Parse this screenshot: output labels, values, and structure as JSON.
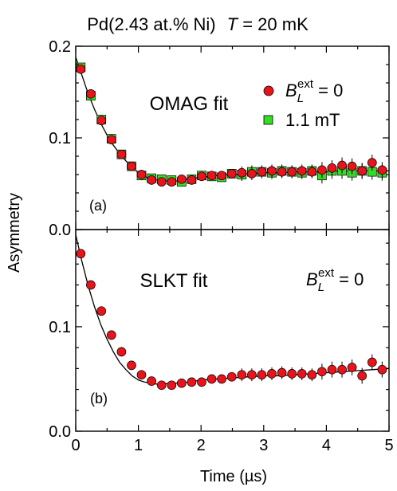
{
  "figure": {
    "title_parts": [
      "Pd(2.43 at.% Ni)",
      "T",
      " = 20 mK"
    ],
    "xlabel": "Time (µs)",
    "ylabel": "Asymmetry",
    "field_symbol": "B",
    "field_sub": "L",
    "field_sup": "ext",
    "field_zero": " = 0",
    "series1_color": "#e8141b",
    "series2_color": "#33dd22"
  },
  "chart_data": [
    {
      "type": "scatter",
      "panel_label": "(a)",
      "title": "OMAG fit",
      "xlim": [
        0,
        5
      ],
      "ylim": [
        0,
        0.2
      ],
      "x_ticks": [
        0,
        1,
        2,
        3,
        4,
        5
      ],
      "y_ticks": [
        0.0,
        0.1,
        0.2
      ],
      "y_tick_labels": [
        "0.0",
        "0.1",
        "0.2"
      ],
      "legend_position": "top-right",
      "series": [
        {
          "name": "B_L^ext = 0",
          "marker": "circle",
          "color": "#e8141b",
          "x": [
            0.08,
            0.24,
            0.41,
            0.57,
            0.73,
            0.89,
            1.05,
            1.21,
            1.37,
            1.53,
            1.69,
            1.85,
            2.01,
            2.17,
            2.33,
            2.49,
            2.65,
            2.81,
            2.97,
            3.13,
            3.29,
            3.45,
            3.61,
            3.77,
            3.93,
            4.09,
            4.25,
            4.41,
            4.57,
            4.73,
            4.89
          ],
          "y": [
            0.175,
            0.148,
            0.119,
            0.098,
            0.082,
            0.069,
            0.06,
            0.054,
            0.052,
            0.052,
            0.055,
            0.054,
            0.058,
            0.059,
            0.059,
            0.061,
            0.062,
            0.061,
            0.063,
            0.064,
            0.063,
            0.063,
            0.064,
            0.063,
            0.065,
            0.067,
            0.07,
            0.069,
            0.064,
            0.073,
            0.065
          ]
        },
        {
          "name": "1.1 mT",
          "marker": "square",
          "color": "#33dd22",
          "x": [
            0.08,
            0.24,
            0.41,
            0.57,
            0.73,
            0.89,
            1.05,
            1.21,
            1.37,
            1.53,
            1.69,
            1.85,
            2.01,
            2.17,
            2.33,
            2.49,
            2.65,
            2.81,
            2.97,
            3.13,
            3.29,
            3.45,
            3.61,
            3.77,
            3.93,
            4.09,
            4.25,
            4.41,
            4.57,
            4.73,
            4.89
          ],
          "y": [
            0.177,
            0.146,
            0.12,
            0.099,
            0.082,
            0.069,
            0.059,
            0.056,
            0.055,
            0.054,
            0.052,
            0.055,
            0.059,
            0.058,
            0.057,
            0.061,
            0.06,
            0.063,
            0.063,
            0.062,
            0.064,
            0.063,
            0.062,
            0.064,
            0.059,
            0.064,
            0.064,
            0.062,
            0.064,
            0.063,
            0.062
          ]
        }
      ],
      "fit": {
        "x": [
          0,
          0.1,
          0.2,
          0.3,
          0.4,
          0.5,
          0.6,
          0.7,
          0.8,
          0.9,
          1.0,
          1.1,
          1.2,
          1.3,
          1.4,
          1.5,
          1.6,
          1.8,
          2.0,
          2.25,
          2.5,
          2.75,
          3.0,
          3.25,
          3.5,
          3.75,
          4.0,
          4.25,
          4.5,
          4.75,
          5.0
        ],
        "y": [
          0.188,
          0.168,
          0.148,
          0.131,
          0.116,
          0.103,
          0.092,
          0.083,
          0.075,
          0.068,
          0.062,
          0.058,
          0.055,
          0.054,
          0.053,
          0.053,
          0.053,
          0.055,
          0.057,
          0.059,
          0.06,
          0.061,
          0.062,
          0.062,
          0.063,
          0.063,
          0.063,
          0.064,
          0.064,
          0.064,
          0.064
        ]
      }
    },
    {
      "type": "scatter",
      "panel_label": "(b)",
      "title": "SLKT fit",
      "xlim": [
        0,
        5
      ],
      "ylim": [
        0,
        0.2
      ],
      "x_ticks": [
        0,
        1,
        2,
        3,
        4,
        5
      ],
      "x_tick_labels": [
        "0",
        "1",
        "2",
        "3",
        "4",
        "5"
      ],
      "y_ticks": [
        0.0,
        0.1
      ],
      "y_tick_labels": [
        "0.0",
        "0.1"
      ],
      "legend_position": "top-right",
      "series": [
        {
          "name": "B_L^ext = 0",
          "marker": "circle",
          "color": "#e8141b",
          "x": [
            0.08,
            0.24,
            0.41,
            0.57,
            0.73,
            0.89,
            1.05,
            1.21,
            1.37,
            1.53,
            1.69,
            1.85,
            2.01,
            2.17,
            2.33,
            2.49,
            2.65,
            2.81,
            2.97,
            3.13,
            3.29,
            3.45,
            3.61,
            3.77,
            3.93,
            4.09,
            4.25,
            4.41,
            4.57,
            4.73,
            4.89
          ],
          "y": [
            0.17,
            0.14,
            0.115,
            0.092,
            0.076,
            0.063,
            0.054,
            0.048,
            0.044,
            0.044,
            0.046,
            0.047,
            0.047,
            0.05,
            0.05,
            0.052,
            0.054,
            0.054,
            0.054,
            0.055,
            0.056,
            0.055,
            0.055,
            0.054,
            0.057,
            0.059,
            0.059,
            0.061,
            0.053,
            0.066,
            0.059
          ]
        }
      ],
      "fit": {
        "x": [
          0,
          0.1,
          0.2,
          0.3,
          0.4,
          0.5,
          0.6,
          0.7,
          0.8,
          0.9,
          1.0,
          1.1,
          1.2,
          1.3,
          1.4,
          1.5,
          1.6,
          1.8,
          2.0,
          2.25,
          2.5,
          2.75,
          3.0,
          3.25,
          3.5,
          3.75,
          4.0,
          4.25,
          4.5,
          4.75,
          5.0
        ],
        "y": [
          0.188,
          0.162,
          0.139,
          0.119,
          0.102,
          0.088,
          0.076,
          0.066,
          0.059,
          0.053,
          0.049,
          0.047,
          0.046,
          0.045,
          0.045,
          0.046,
          0.046,
          0.047,
          0.049,
          0.05,
          0.051,
          0.052,
          0.053,
          0.053,
          0.054,
          0.055,
          0.056,
          0.057,
          0.058,
          0.059,
          0.06
        ]
      }
    }
  ]
}
